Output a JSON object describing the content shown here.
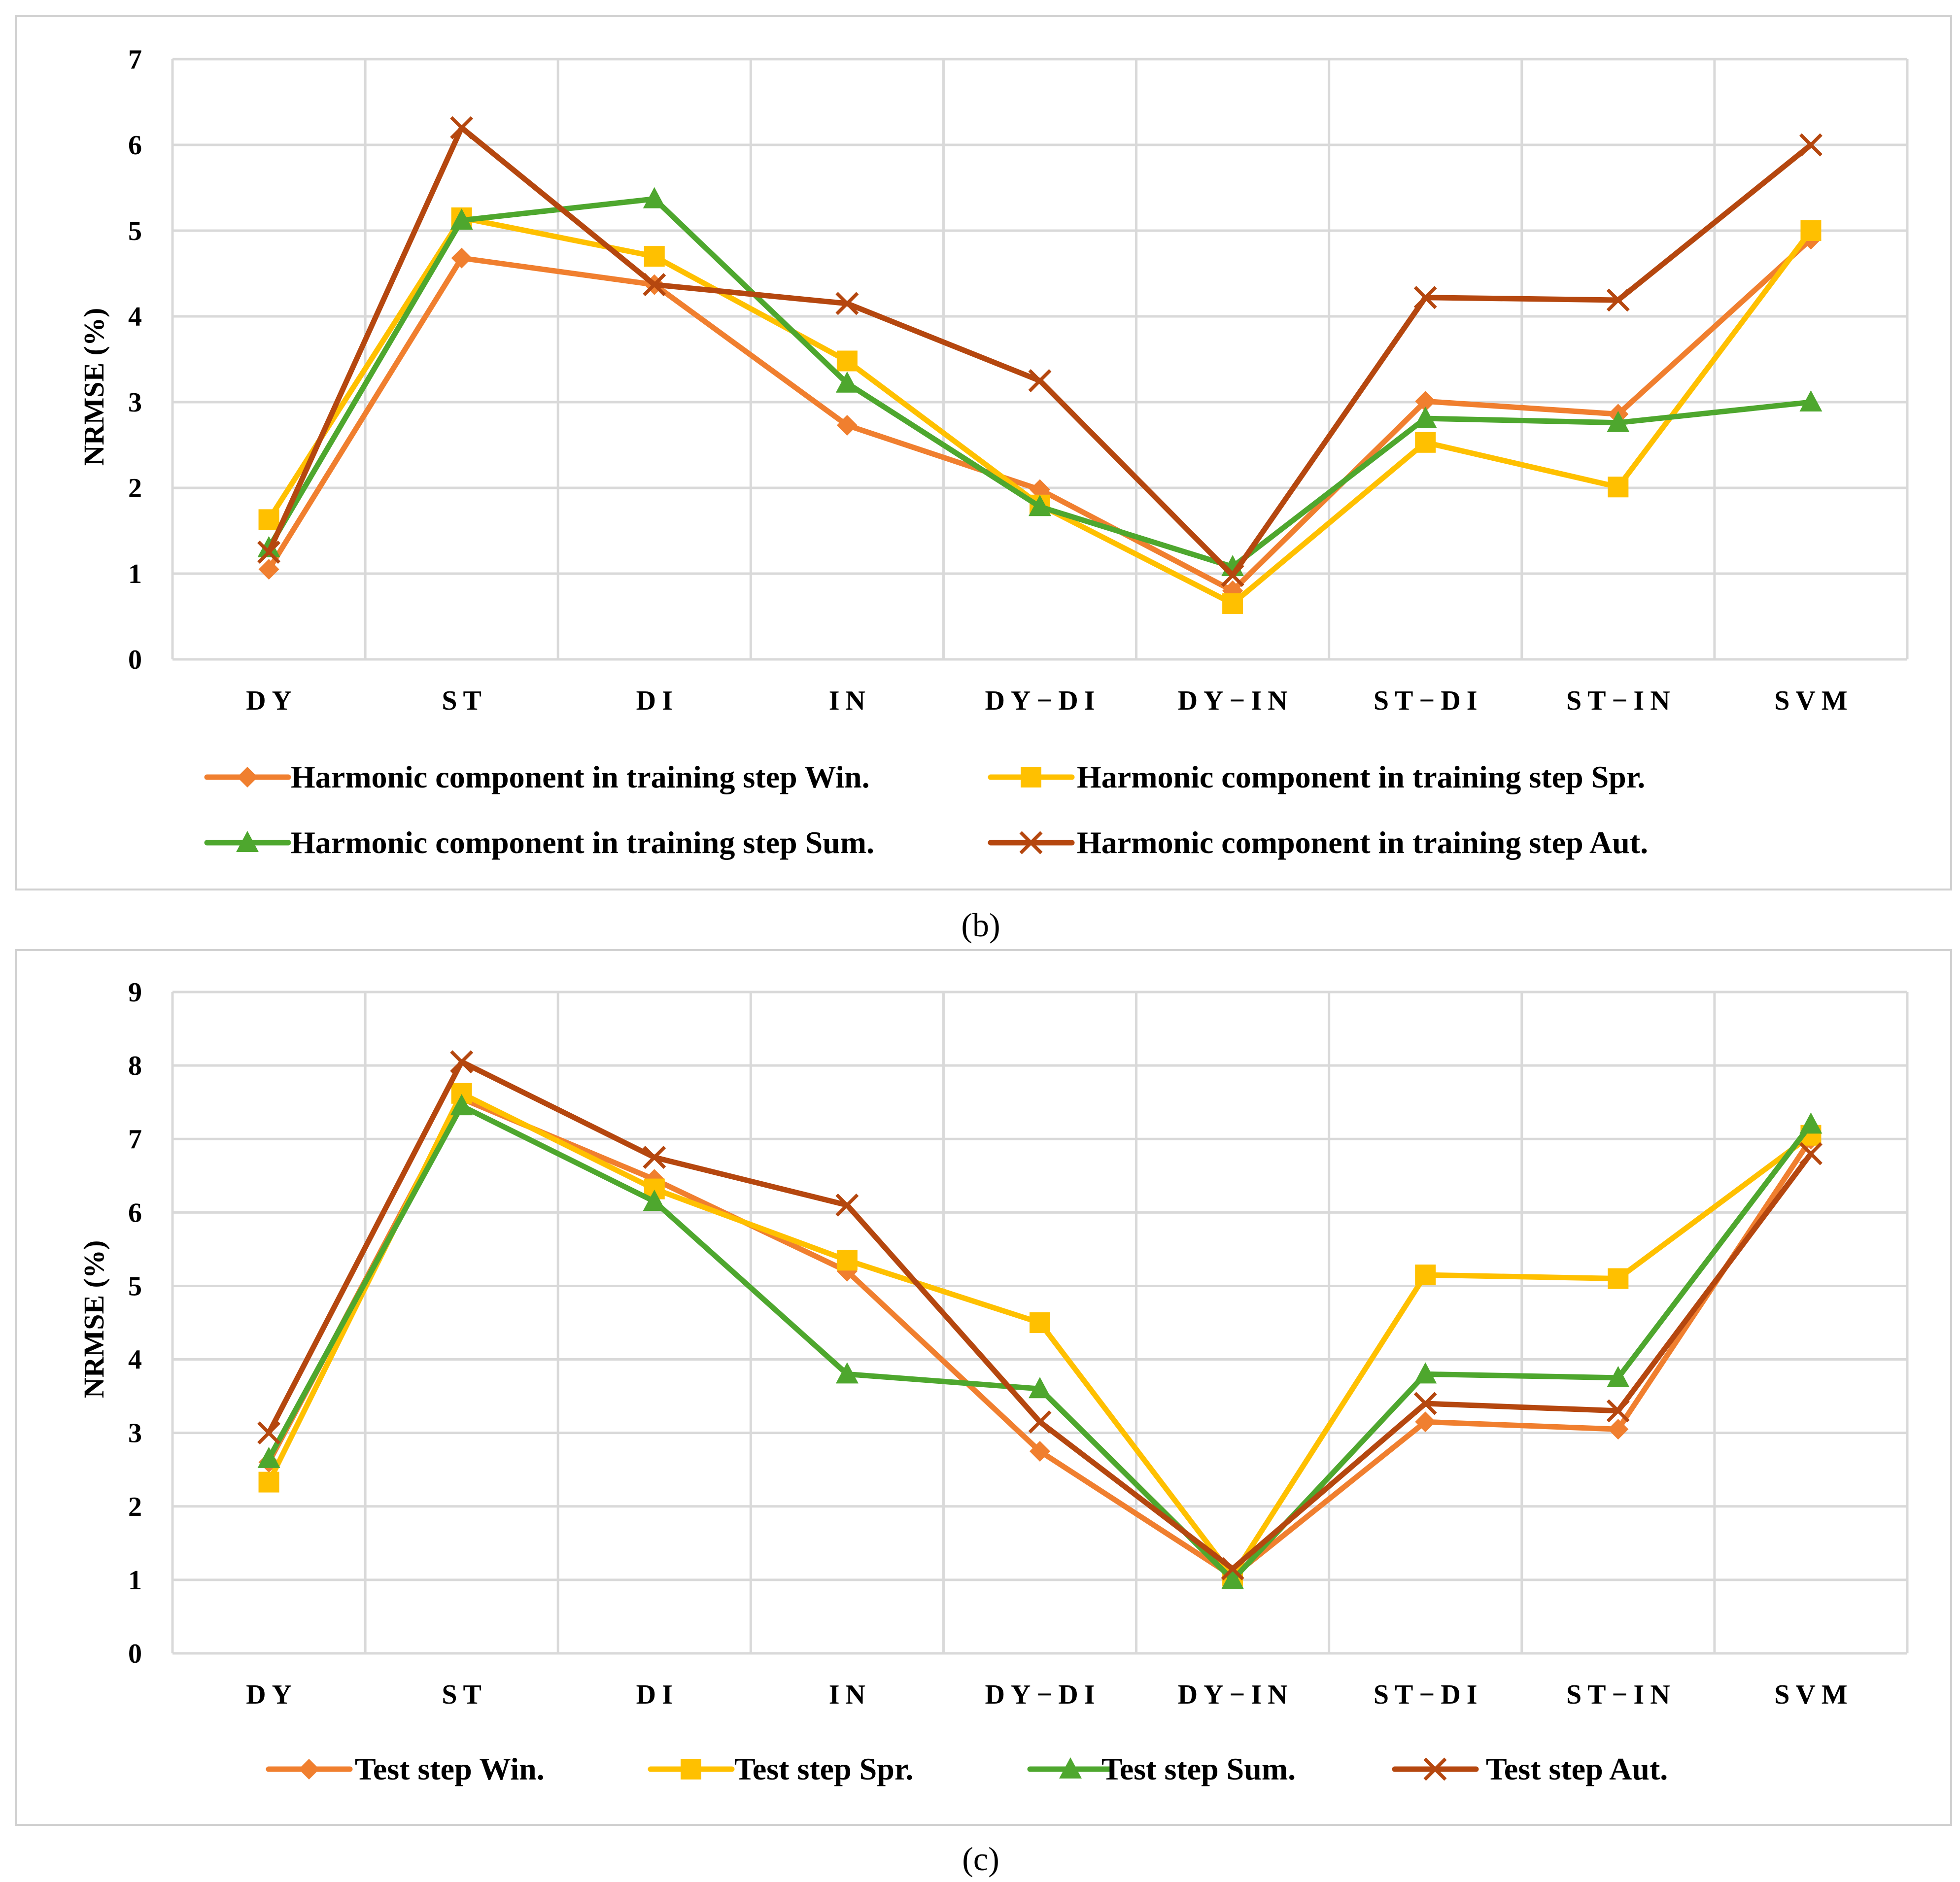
{
  "chart_data": [
    {
      "id": "b",
      "type": "line",
      "caption": "(b)",
      "ylabel": "NRMSE  (%)",
      "ylim": [
        0,
        7
      ],
      "yticks": [
        "0",
        "1",
        "2",
        "3",
        "4",
        "5",
        "6",
        "7"
      ],
      "categories": [
        "DY",
        "ST",
        "DI",
        "IN",
        "DY−DI",
        "DY−IN",
        "ST−DI",
        "ST−IN",
        "SVM"
      ],
      "grid": true,
      "legend_position": "bottom",
      "series": [
        {
          "name": "Harmonic component in training step Win.",
          "color": "#F07F2F",
          "marker": "diamond",
          "values": [
            1.05,
            4.68,
            4.37,
            2.73,
            1.98,
            0.8,
            3.01,
            2.86,
            4.9
          ]
        },
        {
          "name": "Harmonic component in training step Spr.",
          "color": "#FFC000",
          "marker": "square",
          "values": [
            1.63,
            5.15,
            4.7,
            3.48,
            1.8,
            0.65,
            2.53,
            2.01,
            5.0
          ]
        },
        {
          "name": "Harmonic component in training step Sum.",
          "color": "#4EA72E",
          "marker": "triangle",
          "values": [
            1.3,
            5.12,
            5.37,
            3.22,
            1.78,
            1.08,
            2.81,
            2.76,
            3.0
          ]
        },
        {
          "name": "Harmonic component in training step Aut.",
          "color": "#B5470F",
          "marker": "x",
          "values": [
            1.25,
            6.2,
            4.37,
            4.15,
            3.25,
            0.98,
            4.22,
            4.19,
            6.0
          ]
        }
      ]
    },
    {
      "id": "c",
      "type": "line",
      "caption": "(c)",
      "ylabel": "NRMSE  (%)",
      "ylim": [
        0,
        9
      ],
      "yticks": [
        "0",
        "1",
        "2",
        "3",
        "4",
        "5",
        "6",
        "7",
        "8",
        "9"
      ],
      "categories": [
        "DY",
        "ST",
        "DI",
        "IN",
        "DY−DI",
        "DY−IN",
        "ST−DI",
        "ST−IN",
        "SVM"
      ],
      "grid": true,
      "legend_position": "bottom",
      "series": [
        {
          "name": "Test step Win.",
          "color": "#F07F2F",
          "marker": "diamond",
          "values": [
            2.6,
            7.55,
            6.45,
            5.2,
            2.75,
            1.05,
            3.15,
            3.05,
            7.0
          ]
        },
        {
          "name": "Test step Spr.",
          "color": "#FFC000",
          "marker": "square",
          "values": [
            2.33,
            7.62,
            6.32,
            5.35,
            4.5,
            1.05,
            5.15,
            5.1,
            7.05
          ]
        },
        {
          "name": "Test step Sum.",
          "color": "#4EA72E",
          "marker": "triangle",
          "values": [
            2.65,
            7.45,
            6.15,
            3.8,
            3.6,
            1.0,
            3.8,
            3.75,
            7.2
          ]
        },
        {
          "name": "Test step Aut.",
          "color": "#B5470F",
          "marker": "x",
          "values": [
            3.0,
            8.05,
            6.75,
            6.1,
            3.15,
            1.15,
            3.4,
            3.3,
            6.8
          ]
        }
      ]
    }
  ]
}
